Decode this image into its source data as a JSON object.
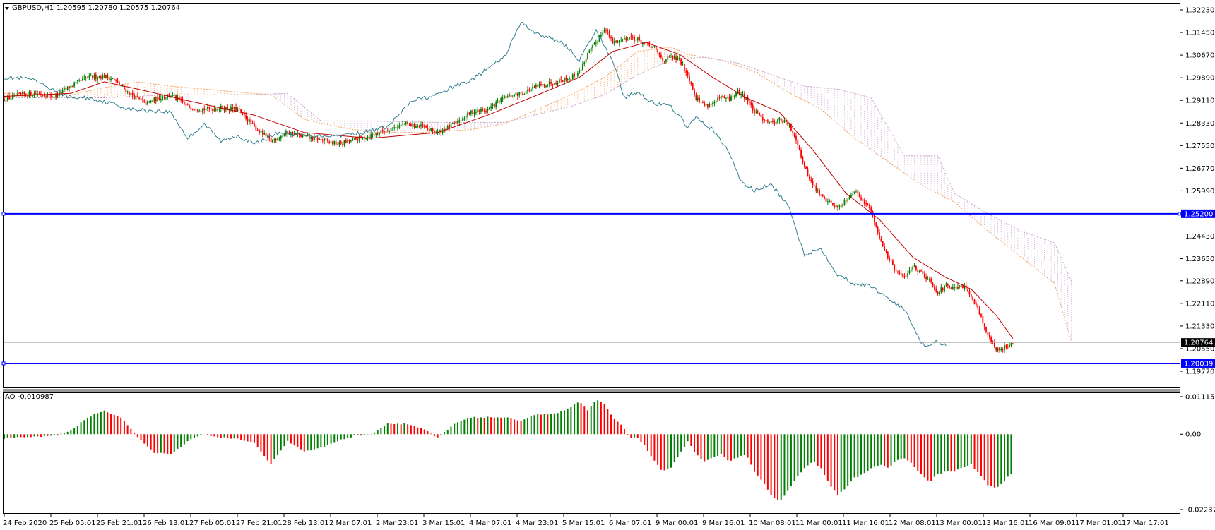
{
  "header": {
    "symbol_label": "GBPUSD,H1",
    "ohlc_label": "1.20595 1.20780 1.20575 1.20764",
    "ao_label": "AO -0.010987"
  },
  "colors": {
    "bull": "#008000",
    "bear": "#ff0000",
    "ma": "#c00000",
    "chikou": "#2f7f8f",
    "senkou_a": "#f4a460",
    "senkou_b": "#c8a2c8",
    "level_line": "#0000ff",
    "bid_line": "#a0a0a0"
  },
  "chart_data": [
    {
      "type": "candlestick",
      "ylim": [
        1.1977,
        1.3223
      ],
      "y_ticks": [
        "1.32230",
        "1.31450",
        "1.30670",
        "1.29890",
        "1.29110",
        "1.28330",
        "1.27550",
        "1.26770",
        "1.25990",
        "1.25200",
        "1.24430",
        "1.23650",
        "1.22890",
        "1.22110",
        "1.21330",
        "1.20550",
        "1.19770"
      ],
      "x_ticks": [
        "24 Feb 2020",
        "25 Feb 05:01",
        "25 Feb 21:01",
        "26 Feb 13:01",
        "27 Feb 05:01",
        "27 Feb 21:01",
        "28 Feb 13:01",
        "2 Mar 07:01",
        "2 Mar 23:01",
        "3 Mar 15:01",
        "4 Mar 07:01",
        "4 Mar 23:01",
        "5 Mar 15:01",
        "6 Mar 07:01",
        "9 Mar 00:01",
        "9 Mar 16:01",
        "10 Mar 08:01",
        "11 Mar 00:01",
        "11 Mar 16:01",
        "12 Mar 08:01",
        "13 Mar 00:01",
        "13 Mar 16:01",
        "16 Mar 09:01",
        "17 Mar 01:01",
        "17 Mar 17:01"
      ],
      "close_path": [
        [
          0,
          1.2915
        ],
        [
          10,
          1.293
        ],
        [
          20,
          1.2935
        ],
        [
          30,
          1.2925
        ],
        [
          40,
          1.296
        ],
        [
          50,
          1.299
        ],
        [
          60,
          1.2995
        ],
        [
          65,
          1.2985
        ],
        [
          75,
          1.2935
        ],
        [
          85,
          1.29
        ],
        [
          95,
          1.2925
        ],
        [
          100,
          1.293
        ],
        [
          110,
          1.289
        ],
        [
          120,
          1.288
        ],
        [
          130,
          1.2885
        ],
        [
          140,
          1.288
        ],
        [
          150,
          1.282
        ],
        [
          160,
          1.277
        ],
        [
          170,
          1.28
        ],
        [
          180,
          1.2785
        ],
        [
          190,
          1.2775
        ],
        [
          200,
          1.276
        ],
        [
          210,
          1.2775
        ],
        [
          220,
          1.279
        ],
        [
          230,
          1.281
        ],
        [
          240,
          1.283
        ],
        [
          250,
          1.282
        ],
        [
          260,
          1.28
        ],
        [
          270,
          1.283
        ],
        [
          280,
          1.287
        ],
        [
          290,
          1.288
        ],
        [
          300,
          1.292
        ],
        [
          310,
          1.2935
        ],
        [
          320,
          1.296
        ],
        [
          330,
          1.2975
        ],
        [
          340,
          1.299
        ],
        [
          345,
          1.301
        ],
        [
          350,
          1.307
        ],
        [
          355,
          1.311
        ],
        [
          360,
          1.316
        ],
        [
          365,
          1.311
        ],
        [
          370,
          1.312
        ],
        [
          375,
          1.313
        ],
        [
          380,
          1.312
        ],
        [
          390,
          1.309
        ],
        [
          395,
          1.305
        ],
        [
          400,
          1.306
        ],
        [
          405,
          1.305
        ],
        [
          410,
          1.3
        ],
        [
          415,
          1.292
        ],
        [
          420,
          1.2895
        ],
        [
          425,
          1.29
        ],
        [
          430,
          1.292
        ],
        [
          435,
          1.2915
        ],
        [
          440,
          1.294
        ],
        [
          445,
          1.292
        ],
        [
          450,
          1.287
        ],
        [
          455,
          1.285
        ],
        [
          460,
          1.2835
        ],
        [
          465,
          1.2845
        ],
        [
          470,
          1.283
        ],
        [
          475,
          1.278
        ],
        [
          480,
          1.268
        ],
        [
          485,
          1.262
        ],
        [
          490,
          1.258
        ],
        [
          495,
          1.256
        ],
        [
          500,
          1.254
        ],
        [
          505,
          1.257
        ],
        [
          510,
          1.26
        ],
        [
          515,
          1.257
        ],
        [
          520,
          1.253
        ],
        [
          525,
          1.244
        ],
        [
          530,
          1.237
        ],
        [
          535,
          1.232
        ],
        [
          540,
          1.23
        ],
        [
          545,
          1.234
        ],
        [
          550,
          1.232
        ],
        [
          555,
          1.229
        ],
        [
          560,
          1.225
        ],
        [
          565,
          1.227
        ],
        [
          570,
          1.226
        ],
        [
          575,
          1.227
        ],
        [
          580,
          1.224
        ],
        [
          585,
          1.218
        ],
        [
          590,
          1.21
        ],
        [
          595,
          1.205
        ],
        [
          600,
          1.206
        ],
        [
          605,
          1.2076
        ]
      ],
      "ma_path": [
        [
          0,
          1.2925
        ],
        [
          40,
          1.2935
        ],
        [
          60,
          1.2975
        ],
        [
          80,
          1.295
        ],
        [
          110,
          1.291
        ],
        [
          150,
          1.286
        ],
        [
          180,
          1.28
        ],
        [
          220,
          1.278
        ],
        [
          260,
          1.28
        ],
        [
          290,
          1.286
        ],
        [
          320,
          1.293
        ],
        [
          345,
          1.299
        ],
        [
          365,
          1.308
        ],
        [
          385,
          1.311
        ],
        [
          405,
          1.307
        ],
        [
          425,
          1.299
        ],
        [
          445,
          1.292
        ],
        [
          465,
          1.287
        ],
        [
          485,
          1.274
        ],
        [
          505,
          1.259
        ],
        [
          525,
          1.25
        ],
        [
          545,
          1.237
        ],
        [
          565,
          1.23
        ],
        [
          580,
          1.226
        ],
        [
          595,
          1.217
        ],
        [
          605,
          1.209
        ]
      ],
      "chikou_path": [
        [
          0,
          1.299
        ],
        [
          15,
          1.2985
        ],
        [
          25,
          1.296
        ],
        [
          40,
          1.292
        ],
        [
          50,
          1.292
        ],
        [
          65,
          1.29
        ],
        [
          75,
          1.288
        ],
        [
          90,
          1.2875
        ],
        [
          100,
          1.287
        ],
        [
          110,
          1.278
        ],
        [
          120,
          1.283
        ],
        [
          130,
          1.277
        ],
        [
          140,
          1.279
        ],
        [
          150,
          1.276
        ],
        [
          165,
          1.28
        ],
        [
          180,
          1.279
        ],
        [
          200,
          1.279
        ],
        [
          215,
          1.28
        ],
        [
          230,
          1.282
        ],
        [
          245,
          1.291
        ],
        [
          260,
          1.293
        ],
        [
          270,
          1.296
        ],
        [
          280,
          1.298
        ],
        [
          290,
          1.302
        ],
        [
          300,
          1.306
        ],
        [
          310,
          1.318
        ],
        [
          320,
          1.314
        ],
        [
          335,
          1.311
        ],
        [
          345,
          1.305
        ],
        [
          355,
          1.315
        ],
        [
          365,
          1.305
        ],
        [
          372,
          1.292
        ],
        [
          380,
          1.294
        ],
        [
          390,
          1.29
        ],
        [
          400,
          1.289
        ],
        [
          410,
          1.282
        ],
        [
          415,
          1.285
        ],
        [
          425,
          1.281
        ],
        [
          435,
          1.273
        ],
        [
          442,
          1.263
        ],
        [
          450,
          1.26
        ],
        [
          460,
          1.262
        ],
        [
          470,
          1.255
        ],
        [
          480,
          1.238
        ],
        [
          490,
          1.24
        ],
        [
          500,
          1.231
        ],
        [
          510,
          1.228
        ],
        [
          520,
          1.227
        ],
        [
          530,
          1.223
        ],
        [
          540,
          1.219
        ],
        [
          550,
          1.208
        ],
        [
          553,
          1.206
        ],
        [
          558,
          1.208
        ],
        [
          565,
          1.207
        ]
      ],
      "senkou_a_path": [
        [
          0,
          1.2935
        ],
        [
          40,
          1.293
        ],
        [
          60,
          1.2955
        ],
        [
          80,
          1.2975
        ],
        [
          100,
          1.296
        ],
        [
          120,
          1.295
        ],
        [
          140,
          1.294
        ],
        [
          160,
          1.293
        ],
        [
          180,
          1.2845
        ],
        [
          200,
          1.282
        ],
        [
          220,
          1.28
        ],
        [
          250,
          1.28
        ],
        [
          280,
          1.281
        ],
        [
          300,
          1.283
        ],
        [
          320,
          1.288
        ],
        [
          340,
          1.293
        ],
        [
          360,
          1.299
        ],
        [
          380,
          1.308
        ],
        [
          400,
          1.3095
        ],
        [
          410,
          1.307
        ],
        [
          430,
          1.305
        ],
        [
          450,
          1.301
        ],
        [
          470,
          1.294
        ],
        [
          490,
          1.288
        ],
        [
          510,
          1.278
        ],
        [
          530,
          1.27
        ],
        [
          550,
          1.262
        ],
        [
          570,
          1.256
        ],
        [
          590,
          1.246
        ],
        [
          610,
          1.237
        ],
        [
          630,
          1.228
        ],
        [
          640,
          1.208
        ]
      ],
      "senkou_b_path": [
        [
          0,
          1.292
        ],
        [
          60,
          1.292
        ],
        [
          100,
          1.293
        ],
        [
          140,
          1.293
        ],
        [
          170,
          1.2935
        ],
        [
          190,
          1.284
        ],
        [
          220,
          1.284
        ],
        [
          260,
          1.2835
        ],
        [
          300,
          1.2835
        ],
        [
          340,
          1.289
        ],
        [
          360,
          1.293
        ],
        [
          380,
          1.3
        ],
        [
          400,
          1.305
        ],
        [
          420,
          1.306
        ],
        [
          440,
          1.304
        ],
        [
          460,
          1.3
        ],
        [
          480,
          1.296
        ],
        [
          500,
          1.295
        ],
        [
          520,
          1.292
        ],
        [
          540,
          1.272
        ],
        [
          560,
          1.272
        ],
        [
          570,
          1.259
        ],
        [
          590,
          1.252
        ],
        [
          610,
          1.246
        ],
        [
          630,
          1.242
        ],
        [
          640,
          1.229
        ]
      ],
      "cloud_end_index": 640,
      "levels": [
        {
          "label": "1.25200",
          "value": 1.252
        },
        {
          "label": "1.20039",
          "value": 1.20039
        }
      ],
      "bid": {
        "label": "1.20764",
        "value": 1.20764
      },
      "bar_count": 606
    },
    {
      "type": "bar",
      "title": "AO -0.010987",
      "ylim": [
        -0.022371,
        0.011156
      ],
      "y_ticks": [
        {
          "label": "0.011156",
          "value": 0.011156
        },
        {
          "label": "0.00",
          "value": 0.0
        },
        {
          "label": "-0.022371",
          "value": -0.022371
        }
      ],
      "ao_path": [
        [
          0,
          -0.0012
        ],
        [
          10,
          -0.001
        ],
        [
          20,
          -0.0008
        ],
        [
          30,
          -0.0005
        ],
        [
          40,
          0.001
        ],
        [
          50,
          0.005
        ],
        [
          60,
          0.007
        ],
        [
          70,
          0.005
        ],
        [
          80,
          -0.001
        ],
        [
          90,
          -0.0055
        ],
        [
          100,
          -0.006
        ],
        [
          110,
          -0.002
        ],
        [
          120,
          0.0
        ],
        [
          130,
          -0.001
        ],
        [
          140,
          -0.0015
        ],
        [
          150,
          -0.0025
        ],
        [
          160,
          -0.009
        ],
        [
          170,
          -0.002
        ],
        [
          180,
          -0.005
        ],
        [
          190,
          -0.004
        ],
        [
          200,
          -0.002
        ],
        [
          210,
          -0.0005
        ],
        [
          220,
          0.0
        ],
        [
          230,
          0.003
        ],
        [
          240,
          0.003
        ],
        [
          250,
          0.002
        ],
        [
          260,
          -0.001
        ],
        [
          270,
          0.003
        ],
        [
          280,
          0.005
        ],
        [
          290,
          0.005
        ],
        [
          300,
          0.005
        ],
        [
          310,
          0.004
        ],
        [
          320,
          0.006
        ],
        [
          330,
          0.006
        ],
        [
          340,
          0.008
        ],
        [
          345,
          0.01
        ],
        [
          350,
          0.007
        ],
        [
          355,
          0.0105
        ],
        [
          360,
          0.009
        ],
        [
          365,
          0.005
        ],
        [
          370,
          0.003
        ],
        [
          375,
          -0.001
        ],
        [
          380,
          -0.001
        ],
        [
          385,
          -0.004
        ],
        [
          390,
          -0.008
        ],
        [
          395,
          -0.011
        ],
        [
          400,
          -0.01
        ],
        [
          405,
          -0.006
        ],
        [
          410,
          -0.002
        ],
        [
          415,
          -0.006
        ],
        [
          420,
          -0.008
        ],
        [
          425,
          -0.007
        ],
        [
          430,
          -0.006
        ],
        [
          435,
          -0.008
        ],
        [
          440,
          -0.007
        ],
        [
          445,
          -0.006
        ],
        [
          450,
          -0.011
        ],
        [
          455,
          -0.014
        ],
        [
          460,
          -0.018
        ],
        [
          465,
          -0.02
        ],
        [
          470,
          -0.017
        ],
        [
          475,
          -0.013
        ],
        [
          480,
          -0.01
        ],
        [
          485,
          -0.008
        ],
        [
          490,
          -0.01
        ],
        [
          495,
          -0.015
        ],
        [
          500,
          -0.018
        ],
        [
          505,
          -0.016
        ],
        [
          510,
          -0.013
        ],
        [
          515,
          -0.012
        ],
        [
          520,
          -0.01
        ],
        [
          525,
          -0.009
        ],
        [
          530,
          -0.01
        ],
        [
          535,
          -0.008
        ],
        [
          540,
          -0.007
        ],
        [
          545,
          -0.009
        ],
        [
          550,
          -0.012
        ],
        [
          555,
          -0.014
        ],
        [
          560,
          -0.012
        ],
        [
          565,
          -0.011
        ],
        [
          570,
          -0.011
        ],
        [
          575,
          -0.01
        ],
        [
          580,
          -0.009
        ],
        [
          585,
          -0.012
        ],
        [
          590,
          -0.015
        ],
        [
          595,
          -0.016
        ],
        [
          600,
          -0.014
        ],
        [
          605,
          -0.011
        ]
      ]
    }
  ]
}
